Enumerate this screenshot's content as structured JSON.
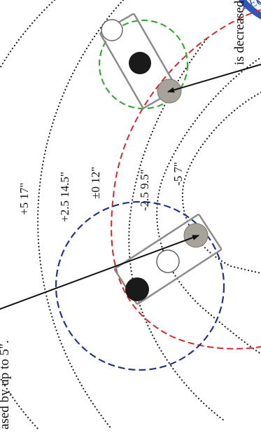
{
  "stamp": {
    "text": "REGIS",
    "ring_color": "#2f56b8",
    "text_color": "#2f56b8"
  },
  "captions": {
    "top_right": "is decreased",
    "bottom_left": "ased by up to 5\"."
  },
  "rings": [
    {
      "id": "plus5",
      "label": "+5  17\""
    },
    {
      "id": "plus2_5",
      "label": "+2.5  14.5\""
    },
    {
      "id": "zero",
      "label": "±0  12\""
    },
    {
      "id": "minus2_5",
      "label": "-2.5  9.5\""
    },
    {
      "id": "minus5",
      "label": "-5  7\""
    }
  ],
  "colors": {
    "red_ring": "#d8282b",
    "green_circle": "#3aa83a",
    "blue_circle": "#23338f",
    "dots": "#222222",
    "box": "#8c8c8c",
    "knob_dark": "#1a1a1a",
    "knob_grey": "#a8a39a",
    "arrow": "#111111"
  }
}
